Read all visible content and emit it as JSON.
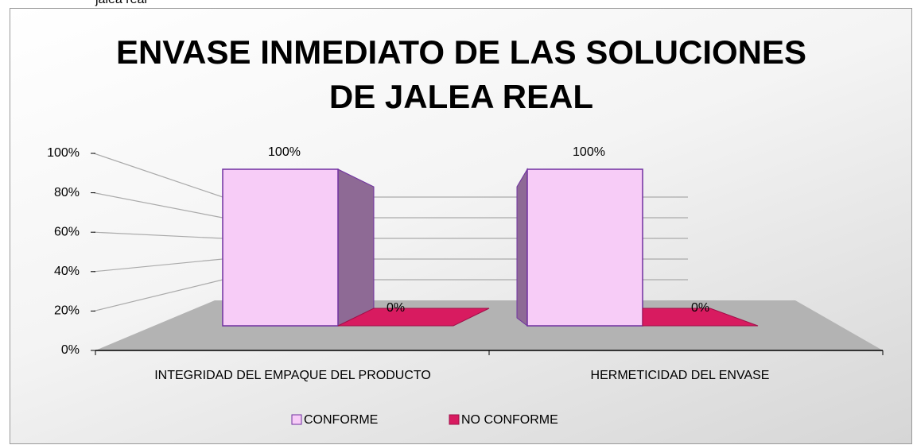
{
  "caption": "jalea real",
  "chart_data": {
    "type": "bar3d",
    "title": "ENVASE INMEDIATO DE LAS SOLUCIONES DE JALEA REAL",
    "categories": [
      "INTEGRIDAD DEL EMPAQUE DEL PRODUCTO",
      "HERMETICIDAD DEL ENVASE"
    ],
    "series": [
      {
        "name": "CONFORME",
        "color": "#f7ccf7",
        "values": [
          100,
          100
        ],
        "value_labels": [
          "100%",
          "100%"
        ]
      },
      {
        "name": "NO CONFORME",
        "color": "#d81b60",
        "values": [
          0,
          0
        ],
        "value_labels": [
          "0%",
          "0%"
        ]
      }
    ],
    "ylim": [
      0,
      100
    ],
    "yticks": [
      {
        "value": 0,
        "label": "0%"
      },
      {
        "value": 20,
        "label": "20%"
      },
      {
        "value": 40,
        "label": "40%"
      },
      {
        "value": 60,
        "label": "60%"
      },
      {
        "value": 80,
        "label": "80%"
      },
      {
        "value": 100,
        "label": "100%"
      }
    ],
    "grid": true,
    "legend": "bottom"
  }
}
